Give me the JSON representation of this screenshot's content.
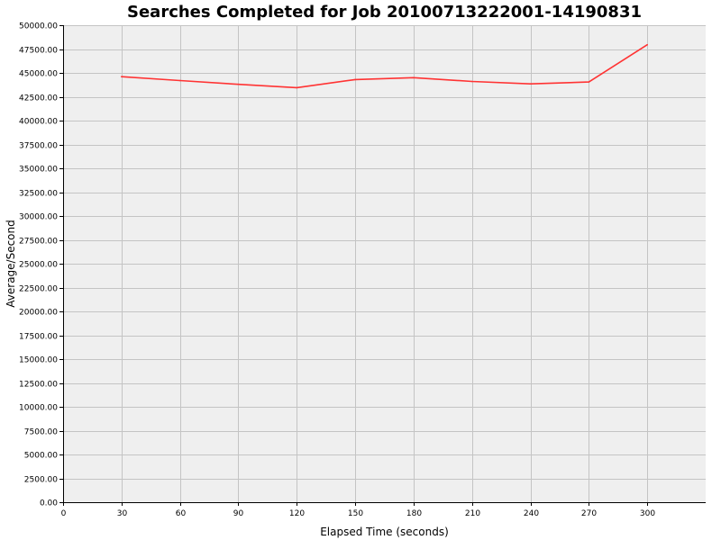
{
  "chart_data": {
    "type": "line",
    "title": "Searches Completed for Job 20100713222001-14190831",
    "xlabel": "Elapsed Time (seconds)",
    "ylabel": "Average/Second",
    "xlim": [
      0,
      330
    ],
    "ylim": [
      0,
      50000
    ],
    "x_ticks": [
      0,
      30,
      60,
      90,
      120,
      150,
      180,
      210,
      240,
      270,
      300
    ],
    "y_ticks": [
      0,
      2500,
      5000,
      7500,
      10000,
      12500,
      15000,
      17500,
      20000,
      22500,
      25000,
      27500,
      30000,
      32500,
      35000,
      37500,
      40000,
      42500,
      45000,
      47500,
      50000
    ],
    "y_tick_labels": [
      "0.00",
      "2500.00",
      "5000.00",
      "7500.00",
      "10000.00",
      "12500.00",
      "15000.00",
      "17500.00",
      "20000.00",
      "22500.00",
      "25000.00",
      "27500.00",
      "30000.00",
      "32500.00",
      "35000.00",
      "37500.00",
      "40000.00",
      "42500.00",
      "45000.00",
      "47500.00",
      "50000.00"
    ],
    "grid": true,
    "series": [
      {
        "color": "#ff3333",
        "x": [
          30,
          60,
          90,
          120,
          150,
          180,
          210,
          240,
          270,
          300
        ],
        "y": [
          44600,
          44200,
          43800,
          43450,
          44300,
          44500,
          44100,
          43850,
          44050,
          47950
        ]
      }
    ],
    "colors": {
      "plot_background": "#efefef",
      "grid": "#c4c4c4",
      "axis": "#000000"
    }
  }
}
